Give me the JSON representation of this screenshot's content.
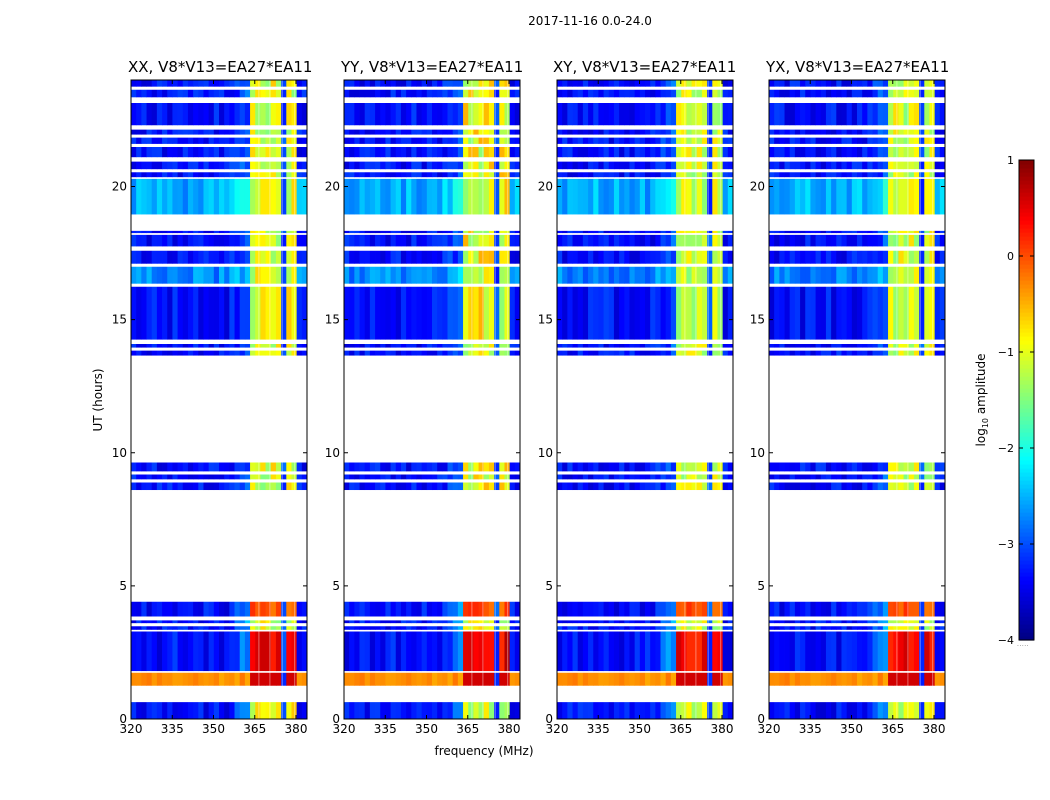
{
  "chart_data": {
    "type": "heatmap",
    "title": "2017-11-16 0.0-24.0",
    "xlabel": "frequency (MHz)",
    "ylabel": "UT (hours)",
    "xlim": [
      320,
      384
    ],
    "ylim": [
      0,
      24
    ],
    "xticks": [
      320,
      335,
      350,
      365,
      380
    ],
    "yticks": [
      0,
      5,
      10,
      15,
      20
    ],
    "colorbar": {
      "label": "log",
      "label_subscript": "10",
      "label_suffix": " amplitude",
      "range": [
        -4,
        1
      ],
      "ticks": [
        1,
        0,
        -1,
        -2,
        -3,
        -4
      ],
      "colormap": "jet",
      "footnote": "....."
    },
    "panels": [
      {
        "title": "XX, V8*V13=EA27*EA11",
        "level_scale": 1.0
      },
      {
        "title": "YY, V8*V13=EA27*EA11",
        "level_scale": 1.15
      },
      {
        "title": "XY, V8*V13=EA27*EA11",
        "level_scale": 0.85
      },
      {
        "title": "YX, V8*V13=EA27*EA11",
        "level_scale": 0.9
      }
    ],
    "data_bands_ut_hours": [
      [
        0.0,
        0.65
      ],
      [
        1.25,
        1.75
      ],
      [
        1.8,
        3.3
      ],
      [
        3.35,
        3.5
      ],
      [
        3.6,
        3.72
      ],
      [
        3.85,
        4.42
      ],
      [
        8.6,
        8.9
      ],
      [
        9.0,
        9.2
      ],
      [
        9.3,
        9.65
      ],
      [
        13.65,
        13.85
      ],
      [
        13.95,
        14.1
      ],
      [
        14.25,
        16.25
      ],
      [
        16.35,
        17.0
      ],
      [
        17.1,
        17.6
      ],
      [
        17.75,
        18.2
      ],
      [
        18.25,
        18.35
      ],
      [
        18.95,
        20.3
      ],
      [
        20.35,
        20.55
      ],
      [
        20.65,
        20.95
      ],
      [
        21.1,
        21.5
      ],
      [
        21.6,
        21.85
      ],
      [
        21.95,
        22.15
      ],
      [
        22.3,
        23.15
      ],
      [
        23.35,
        23.65
      ],
      [
        23.75,
        24.0
      ]
    ],
    "strong_rfi_channels_mhz": [
      [
        363,
        366.5
      ],
      [
        367.5,
        370.5
      ],
      [
        371.5,
        375
      ],
      [
        376,
        379.5
      ]
    ],
    "strong_rfi_flagged_above_mhz": 381
  }
}
